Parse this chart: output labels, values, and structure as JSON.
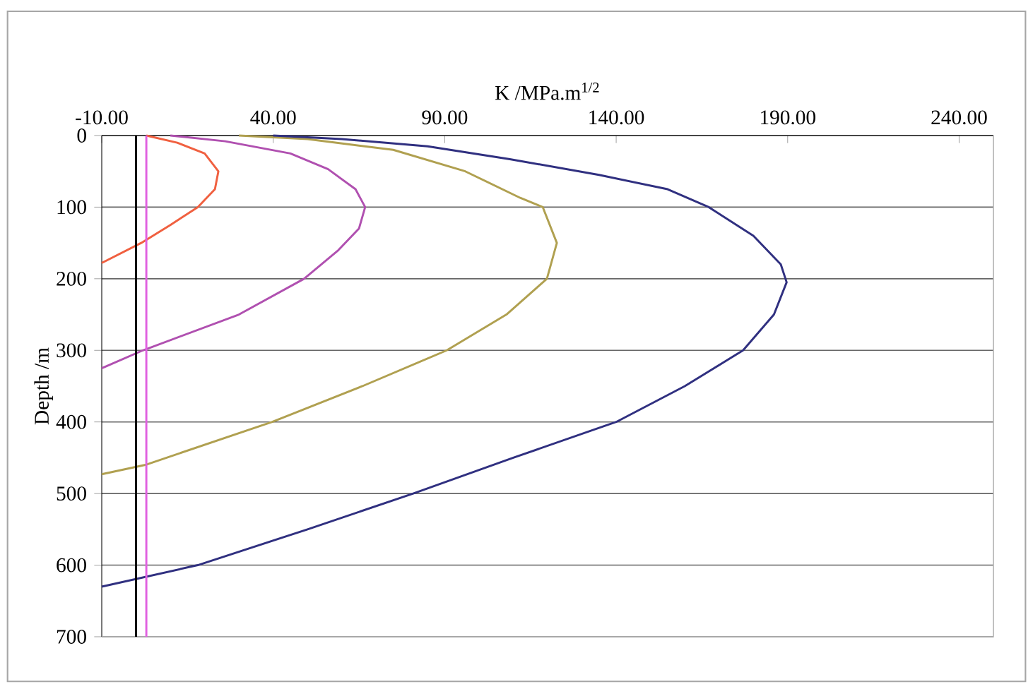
{
  "chart_data": {
    "type": "line",
    "xlabel": "K /MPa.m$^{1/2}$",
    "ylabel": "Depth /m",
    "xlim": [
      -10,
      250
    ],
    "ylim": [
      700,
      0
    ],
    "xticks": [
      {
        "value": -10,
        "label": "-10.00"
      },
      {
        "value": 40,
        "label": "40.00"
      },
      {
        "value": 90,
        "label": "90.00"
      },
      {
        "value": 140,
        "label": "140.00"
      },
      {
        "value": 190,
        "label": "190.00"
      },
      {
        "value": 240,
        "label": "240.00"
      }
    ],
    "yticks": [
      0,
      100,
      200,
      300,
      400,
      500,
      600,
      700
    ],
    "grid": "y",
    "marker": "none",
    "line_style": "solid",
    "series": [
      {
        "color": "#f06040",
        "x": [
          3,
          12,
          20,
          24,
          23,
          18,
          10,
          1.5,
          -10
        ],
        "values": [
          0,
          10,
          25,
          50,
          75,
          100,
          125,
          150,
          178
        ]
      },
      {
        "color": "#b050b0",
        "x": [
          10,
          26,
          45,
          56,
          64,
          66.8,
          65,
          59,
          49,
          30,
          2,
          -10
        ],
        "values": [
          0,
          8,
          25,
          47,
          75,
          100,
          130,
          160,
          200,
          250,
          300,
          325
        ]
      },
      {
        "color": "#b0a050",
        "x": [
          30,
          50,
          75,
          96,
          112,
          118.6,
          122.7,
          119.8,
          108,
          90.6,
          66,
          39.7,
          2.7,
          -10
        ],
        "values": [
          0,
          5,
          20,
          50,
          87,
          100,
          150,
          200,
          250,
          300,
          350,
          400,
          460,
          473
        ]
      },
      {
        "color": "#303080",
        "x": [
          40,
          60,
          85,
          109,
          135,
          155,
          167,
          180,
          188,
          189.7,
          186,
          177,
          160,
          140,
          110,
          80.8,
          50,
          18,
          -10
        ],
        "values": [
          0,
          5,
          15,
          33,
          55,
          75,
          100,
          140,
          180,
          205,
          250,
          300,
          350,
          400,
          450,
          500,
          550,
          600,
          630
        ]
      },
      {
        "color": "#000000",
        "x": [
          0,
          0
        ],
        "values": [
          0,
          700
        ]
      },
      {
        "color": "#e060e0",
        "x": [
          3,
          3
        ],
        "values": [
          0,
          700
        ]
      }
    ]
  }
}
